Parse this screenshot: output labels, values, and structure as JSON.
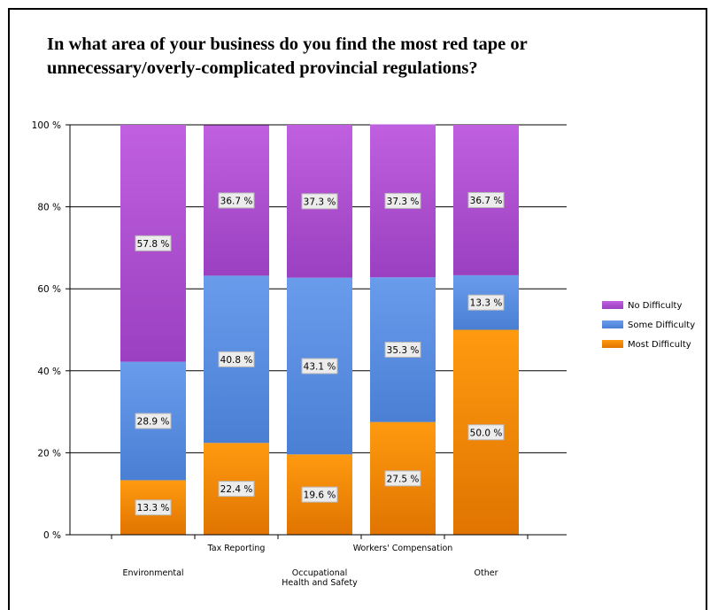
{
  "chart_data": {
    "type": "bar",
    "stacked": true,
    "title": "In what area of your business do you find the most red tape or unnecessary/overly-complicated provincial regulations?",
    "categories": [
      "Environmental",
      "Tax Reporting",
      "Occupational Health and Safety",
      "Workers' Compensation",
      "Other"
    ],
    "series": [
      {
        "name": "Most Difficulty",
        "color": "#f08a00",
        "values": [
          13.3,
          22.4,
          19.6,
          27.5,
          50.0
        ],
        "labels": [
          "13.3 %",
          "22.4 %",
          "19.6 %",
          "27.5 %",
          "50.0 %"
        ]
      },
      {
        "name": "Some Difficulty",
        "color": "#5a8fe0",
        "values": [
          28.9,
          40.8,
          43.1,
          35.3,
          13.3
        ],
        "labels": [
          "28.9 %",
          "40.8 %",
          "43.1 %",
          "35.3 %",
          "13.3 %"
        ]
      },
      {
        "name": "No Difficulty",
        "color": "#b050d0",
        "values": [
          57.8,
          36.7,
          37.3,
          37.3,
          36.7
        ],
        "labels": [
          "57.8 %",
          "36.7 %",
          "37.3 %",
          "37.3 %",
          "36.7 %"
        ]
      }
    ],
    "ylim": [
      0,
      100
    ],
    "yticks": [
      0,
      20,
      40,
      60,
      80,
      100
    ],
    "ytick_labels": [
      "0 %",
      "20 %",
      "40 %",
      "60 %",
      "80 %",
      "100 %"
    ],
    "grid": true,
    "legend_position": "right",
    "legend_order": [
      "No Difficulty",
      "Some Difficulty",
      "Most Difficulty"
    ]
  }
}
